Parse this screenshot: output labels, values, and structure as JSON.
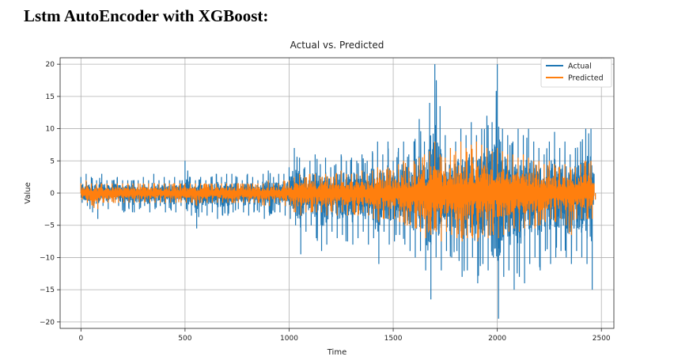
{
  "document": {
    "heading": "Lstm AutoEncoder with XGBoost:"
  },
  "chart_data": {
    "type": "line",
    "title": "Actual vs. Predicted",
    "xlabel": "Time",
    "ylabel": "Value",
    "xlim": [
      -100,
      2560
    ],
    "ylim": [
      -21,
      21
    ],
    "x_ticks": [
      0,
      500,
      1000,
      1500,
      2000,
      2500
    ],
    "x_tick_labels": [
      "0",
      "500",
      "1000",
      "1500",
      "2000",
      "2500"
    ],
    "y_ticks": [
      20,
      15,
      10,
      5,
      0,
      -5,
      -10,
      -15,
      -20
    ],
    "y_tick_labels": [
      "20",
      "15",
      "10",
      "5",
      "0",
      "−5",
      "−10",
      "−15",
      "−20"
    ],
    "grid": true,
    "legend_position": "top-right",
    "x": [
      0,
      25,
      50,
      75,
      100,
      125,
      150,
      175,
      200,
      225,
      250,
      275,
      300,
      325,
      350,
      375,
      400,
      425,
      450,
      475,
      500,
      525,
      550,
      575,
      600,
      625,
      650,
      675,
      700,
      725,
      750,
      775,
      800,
      825,
      850,
      875,
      900,
      925,
      950,
      975,
      1000,
      1025,
      1050,
      1075,
      1100,
      1125,
      1150,
      1175,
      1200,
      1225,
      1250,
      1275,
      1300,
      1325,
      1350,
      1375,
      1400,
      1425,
      1450,
      1475,
      1500,
      1525,
      1550,
      1575,
      1600,
      1625,
      1650,
      1675,
      1700,
      1725,
      1750,
      1775,
      1800,
      1825,
      1850,
      1875,
      1900,
      1925,
      1950,
      1975,
      2000,
      2025,
      2050,
      2075,
      2100,
      2125,
      2150,
      2175,
      2200,
      2225,
      2250,
      2275,
      2300,
      2325,
      2350,
      2375,
      2400,
      2425,
      2450,
      2465
    ],
    "series": [
      {
        "name": "Actual",
        "color": "#1f77b4",
        "upper": [
          2.5,
          3,
          2.5,
          2,
          3,
          2,
          2,
          2.5,
          2,
          2,
          2,
          2,
          2.5,
          2,
          3,
          2,
          2.5,
          2,
          2.5,
          2,
          5,
          2.5,
          2,
          2.5,
          2,
          2.5,
          3,
          2.5,
          3,
          3,
          2.5,
          2,
          3,
          2.5,
          2,
          3,
          3.5,
          2.5,
          3,
          3,
          4,
          7,
          5.5,
          4,
          5,
          6,
          4.5,
          5.5,
          4,
          4.5,
          6,
          5,
          5.5,
          5,
          6,
          5,
          6.5,
          8,
          6,
          8,
          5,
          7,
          8,
          6,
          8,
          11.5,
          8,
          14,
          20,
          13.5,
          9,
          7,
          8,
          10,
          9,
          11,
          9,
          10,
          12,
          11,
          20,
          10,
          9,
          8,
          10,
          9,
          10,
          8,
          7,
          6,
          8,
          9.5,
          7,
          8,
          6,
          7,
          8,
          10,
          10,
          3
        ],
        "lower": [
          -1.5,
          -2,
          -3,
          -4,
          -2,
          -2.5,
          -1.5,
          -2,
          -3,
          -2.5,
          -3,
          -2.5,
          -2,
          -3,
          -2.5,
          -2,
          -3,
          -2.5,
          -3,
          -2,
          -2.5,
          -3.5,
          -5.5,
          -3,
          -3.5,
          -3,
          -4,
          -3.5,
          -3.5,
          -3,
          -2.5,
          -3,
          -3.5,
          -3,
          -3,
          -4,
          -3.5,
          -3,
          -3,
          -3.5,
          -4,
          -5,
          -9.5,
          -6,
          -5,
          -7,
          -9,
          -8,
          -6,
          -7,
          -6.5,
          -7.5,
          -8,
          -7,
          -6,
          -8,
          -7,
          -11,
          -6,
          -8,
          -7.5,
          -6.5,
          -8,
          -9,
          -10,
          -9,
          -12,
          -16.5,
          -10,
          -12,
          -9,
          -10,
          -9,
          -13,
          -12,
          -10,
          -14,
          -11,
          -12,
          -10,
          -19.5,
          -13,
          -12,
          -15,
          -13,
          -14,
          -11,
          -10,
          -12,
          -9,
          -11,
          -10,
          -9,
          -10,
          -11,
          -9,
          -10,
          -11,
          -15,
          -1
        ]
      },
      {
        "name": "Predicted",
        "color": "#ff7f0e",
        "upper": [
          1.5,
          2,
          1.5,
          1.5,
          1.5,
          1.5,
          1.5,
          1.5,
          1.5,
          1.5,
          1.5,
          1.5,
          1.5,
          1.5,
          1.5,
          1.5,
          1.5,
          1.5,
          1.5,
          1.5,
          1.5,
          1.5,
          1.5,
          1.5,
          1.5,
          1.5,
          1.5,
          1.5,
          1.5,
          1.5,
          1.5,
          1.5,
          1.5,
          1.5,
          1.5,
          1.5,
          2,
          1.5,
          1.5,
          2,
          2,
          2.5,
          3,
          2.5,
          3,
          3,
          2.5,
          3,
          2.5,
          3,
          3.5,
          3,
          3,
          3,
          3.5,
          3,
          3.5,
          4,
          3.5,
          4,
          3.5,
          4.5,
          5,
          4,
          5,
          5.5,
          6,
          6.5,
          8,
          6,
          5.5,
          7,
          6.5,
          8,
          7,
          7.5,
          8,
          7.5,
          7,
          6.5,
          7,
          6.5,
          6,
          6,
          5.5,
          6,
          5.5,
          5,
          5,
          4.5,
          5,
          4.5,
          4,
          4.5,
          4,
          4,
          4.5,
          5,
          5,
          1.5
        ],
        "lower": [
          -1,
          -1.5,
          -2,
          -2.5,
          -1.5,
          -1.5,
          -1.5,
          -1.5,
          -1.5,
          -1.5,
          -1.5,
          -1.5,
          -1.5,
          -1.5,
          -1.5,
          -1.5,
          -1.5,
          -1.5,
          -1.5,
          -1.5,
          -1.5,
          -1.5,
          -2,
          -1.5,
          -1.5,
          -1.5,
          -1.5,
          -1.5,
          -1.5,
          -1.5,
          -1.5,
          -1.5,
          -1.5,
          -1.5,
          -1.5,
          -2,
          -2,
          -1.5,
          -1.5,
          -2,
          -2,
          -3,
          -3.5,
          -3,
          -3,
          -3,
          -3,
          -3.5,
          -3,
          -3.5,
          -3,
          -3.5,
          -3,
          -3.5,
          -3,
          -3.5,
          -4,
          -4.5,
          -4,
          -4,
          -4,
          -4.5,
          -5,
          -5,
          -5.5,
          -6,
          -7,
          -6.5,
          -6,
          -7.5,
          -6,
          -6.5,
          -7,
          -7.5,
          -7,
          -7,
          -7.5,
          -6.5,
          -7,
          -6.5,
          -7,
          -6.5,
          -6,
          -5.5,
          -6,
          -5.5,
          -5,
          -5.5,
          -5,
          -4.5,
          -4,
          -4.5,
          -4,
          -5,
          -6.5,
          -4,
          -4,
          -4,
          -4,
          -1
        ]
      }
    ]
  }
}
